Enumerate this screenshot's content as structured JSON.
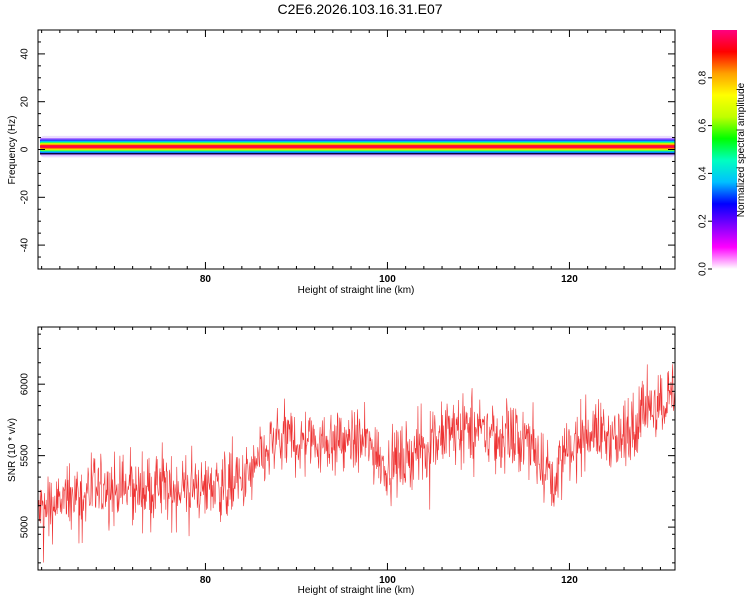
{
  "title": "C2E6.2026.103.16.31.E07",
  "colors": {
    "snr_line": "#ee3333",
    "axes": "#000000",
    "background": "#ffffff"
  },
  "chart_data": [
    {
      "type": "heatmap",
      "xlabel": "Height of straight line (km)",
      "ylabel": "Frequency (Hz)",
      "xlim": [
        61.6,
        131.6
      ],
      "ylim": [
        -50,
        50
      ],
      "x_ticks": [
        80,
        100,
        120
      ],
      "y_ticks": [
        -40,
        -20,
        0,
        20,
        40
      ],
      "band": {
        "center_hz": 1.2,
        "description_values": "narrow band of maximum amplitude near 0-2 Hz across all heights",
        "x_range": [
          61.6,
          131.6
        ]
      },
      "colorbar": {
        "label": "Normalized spectral amplitude",
        "range": [
          0,
          1
        ],
        "ticks": [
          0.0,
          0.2,
          0.4,
          0.6,
          0.8
        ],
        "tick_labels": [
          "0.0",
          "0.2",
          "0.4",
          "0.6",
          "0.8"
        ],
        "colormap": [
          "#ffffff",
          "#ff00ff",
          "#8000ff",
          "#0000ff",
          "#00c0ff",
          "#00ffc0",
          "#00ff00",
          "#c0ff00",
          "#ffff00",
          "#ffa000",
          "#ff0000",
          "#ff0080"
        ]
      },
      "grid": false
    },
    {
      "type": "line",
      "xlabel": "Height of straight line (km)",
      "ylabel": "SNR (10 * v/v)",
      "xlim": [
        61.6,
        131.6
      ],
      "ylim": [
        4700,
        6400
      ],
      "x_ticks": [
        80,
        100,
        120
      ],
      "y_ticks": [
        5000,
        5500,
        6000
      ],
      "trend": {
        "x": [
          61.6,
          66,
          70,
          75,
          80,
          84,
          86,
          88,
          92,
          96,
          98,
          100,
          104,
          108,
          112,
          116,
          118,
          122,
          126,
          128,
          131.6
        ],
        "y": [
          5100,
          5230,
          5260,
          5260,
          5280,
          5300,
          5450,
          5620,
          5600,
          5600,
          5580,
          5420,
          5560,
          5700,
          5640,
          5580,
          5350,
          5680,
          5600,
          5800,
          5950
        ],
        "noise_amplitude": 260
      },
      "grid": false
    }
  ]
}
